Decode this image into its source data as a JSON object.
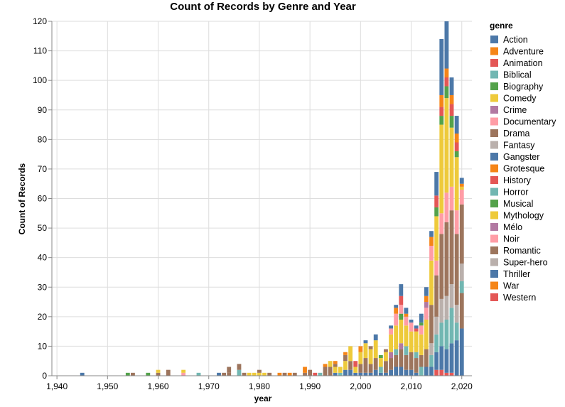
{
  "chart_data": {
    "type": "bar",
    "stacked": true,
    "title": "Count of Records by Genre and Year",
    "xlabel": "year",
    "ylabel": "Count of Records",
    "xlim": [
      1939,
      2022
    ],
    "ylim": [
      0,
      120
    ],
    "x_ticks": [
      "1,940",
      "1,950",
      "1,960",
      "1,970",
      "1,980",
      "1,990",
      "2,000",
      "2,010",
      "2,020"
    ],
    "x_tick_values": [
      1940,
      1950,
      1960,
      1970,
      1980,
      1990,
      2000,
      2010,
      2020
    ],
    "y_ticks": [
      0,
      10,
      20,
      30,
      40,
      50,
      60,
      70,
      80,
      90,
      100,
      110,
      120
    ],
    "grid": true,
    "legend": {
      "title": "genre",
      "position": "right"
    },
    "series": [
      {
        "name": "Action",
        "color": "#4c78a8"
      },
      {
        "name": "Adventure",
        "color": "#f58518"
      },
      {
        "name": "Animation",
        "color": "#e45756"
      },
      {
        "name": "Biblical",
        "color": "#72b7b2"
      },
      {
        "name": "Biography",
        "color": "#54a24b"
      },
      {
        "name": "Comedy",
        "color": "#eeca3b"
      },
      {
        "name": "Crime",
        "color": "#b279a2"
      },
      {
        "name": "Documentary",
        "color": "#ff9da6"
      },
      {
        "name": "Drama",
        "color": "#9d755d"
      },
      {
        "name": "Fantasy",
        "color": "#bab0ac"
      },
      {
        "name": "Gangster",
        "color": "#4c78a8"
      },
      {
        "name": "Grotesque",
        "color": "#f58518"
      },
      {
        "name": "History",
        "color": "#e45756"
      },
      {
        "name": "Horror",
        "color": "#72b7b2"
      },
      {
        "name": "Musical",
        "color": "#54a24b"
      },
      {
        "name": "Mythology",
        "color": "#eeca3b"
      },
      {
        "name": "Mélo",
        "color": "#b279a2"
      },
      {
        "name": "Noir",
        "color": "#ff9da6"
      },
      {
        "name": "Romantic",
        "color": "#9d755d"
      },
      {
        "name": "Super-hero",
        "color": "#bab0ac"
      },
      {
        "name": "Thriller",
        "color": "#4c78a8"
      },
      {
        "name": "War",
        "color": "#f58518"
      },
      {
        "name": "Western",
        "color": "#e45756"
      }
    ],
    "bars": [
      {
        "year": 1945,
        "stack": [
          [
            "Action",
            1
          ]
        ]
      },
      {
        "year": 1954,
        "stack": [
          [
            "Biography",
            1
          ]
        ]
      },
      {
        "year": 1955,
        "stack": [
          [
            "Drama",
            1
          ]
        ]
      },
      {
        "year": 1958,
        "stack": [
          [
            "Biography",
            1
          ]
        ]
      },
      {
        "year": 1960,
        "stack": [
          [
            "Drama",
            1
          ],
          [
            "Comedy",
            1
          ]
        ]
      },
      {
        "year": 1962,
        "stack": [
          [
            "Drama",
            2
          ]
        ]
      },
      {
        "year": 1965,
        "stack": [
          [
            "Documentary",
            1
          ],
          [
            "Comedy",
            1
          ]
        ]
      },
      {
        "year": 1968,
        "stack": [
          [
            "Biblical",
            1
          ]
        ]
      },
      {
        "year": 1972,
        "stack": [
          [
            "Action",
            1
          ]
        ]
      },
      {
        "year": 1973,
        "stack": [
          [
            "Drama",
            1
          ]
        ]
      },
      {
        "year": 1974,
        "stack": [
          [
            "Drama",
            1
          ],
          [
            "Romantic",
            2
          ]
        ]
      },
      {
        "year": 1976,
        "stack": [
          [
            "Horror",
            2
          ],
          [
            "Drama",
            2
          ]
        ]
      },
      {
        "year": 1977,
        "stack": [
          [
            "Drama",
            1
          ]
        ]
      },
      {
        "year": 1978,
        "stack": [
          [
            "Comedy",
            1
          ]
        ]
      },
      {
        "year": 1979,
        "stack": [
          [
            "Comedy",
            1
          ]
        ]
      },
      {
        "year": 1980,
        "stack": [
          [
            "Comedy",
            1
          ],
          [
            "Drama",
            1
          ]
        ]
      },
      {
        "year": 1981,
        "stack": [
          [
            "Comedy",
            1
          ]
        ]
      },
      {
        "year": 1982,
        "stack": [
          [
            "Drama",
            1
          ]
        ]
      },
      {
        "year": 1984,
        "stack": [
          [
            "Adventure",
            1
          ]
        ]
      },
      {
        "year": 1985,
        "stack": [
          [
            "Drama",
            1
          ]
        ]
      },
      {
        "year": 1986,
        "stack": [
          [
            "Adventure",
            1
          ]
        ]
      },
      {
        "year": 1987,
        "stack": [
          [
            "Drama",
            1
          ]
        ]
      },
      {
        "year": 1989,
        "stack": [
          [
            "Drama",
            1
          ],
          [
            "Adventure",
            2
          ]
        ]
      },
      {
        "year": 1990,
        "stack": [
          [
            "Drama",
            2
          ]
        ]
      },
      {
        "year": 1991,
        "stack": [
          [
            "Animation",
            1
          ]
        ]
      },
      {
        "year": 1992,
        "stack": [
          [
            "Biblical",
            1
          ]
        ]
      },
      {
        "year": 1993,
        "stack": [
          [
            "Drama",
            3
          ],
          [
            "Adventure",
            1
          ]
        ]
      },
      {
        "year": 1994,
        "stack": [
          [
            "Drama",
            3
          ],
          [
            "Comedy",
            2
          ]
        ]
      },
      {
        "year": 1995,
        "stack": [
          [
            "Action",
            1
          ],
          [
            "Comedy",
            2
          ],
          [
            "Drama",
            1
          ],
          [
            "Adventure",
            1
          ]
        ]
      },
      {
        "year": 1996,
        "stack": [
          [
            "Horror",
            1
          ],
          [
            "Comedy",
            2
          ]
        ]
      },
      {
        "year": 1997,
        "stack": [
          [
            "Action",
            2
          ],
          [
            "Comedy",
            3
          ],
          [
            "Drama",
            2
          ],
          [
            "Adventure",
            1
          ]
        ]
      },
      {
        "year": 1998,
        "stack": [
          [
            "Action",
            2
          ],
          [
            "Drama",
            3
          ],
          [
            "Comedy",
            5
          ]
        ]
      },
      {
        "year": 1999,
        "stack": [
          [
            "Action",
            1
          ],
          [
            "Comedy",
            2
          ],
          [
            "Animation",
            2
          ]
        ]
      },
      {
        "year": 2000,
        "stack": [
          [
            "Action",
            1
          ],
          [
            "Drama",
            3
          ],
          [
            "Comedy",
            4
          ],
          [
            "Adventure",
            2
          ]
        ]
      },
      {
        "year": 2001,
        "stack": [
          [
            "Action",
            1
          ],
          [
            "Drama",
            5
          ],
          [
            "Comedy",
            5
          ],
          [
            "Action",
            1
          ]
        ]
      },
      {
        "year": 2002,
        "stack": [
          [
            "Action",
            1
          ],
          [
            "Drama",
            3
          ],
          [
            "Comedy",
            5
          ],
          [
            "Drama",
            1
          ]
        ]
      },
      {
        "year": 2003,
        "stack": [
          [
            "Action",
            2
          ],
          [
            "Drama",
            4
          ],
          [
            "Comedy",
            6
          ],
          [
            "Action",
            2
          ]
        ]
      },
      {
        "year": 2004,
        "stack": [
          [
            "Action",
            1
          ],
          [
            "Horror",
            2
          ],
          [
            "Comedy",
            3
          ],
          [
            "Biography",
            1
          ]
        ]
      },
      {
        "year": 2005,
        "stack": [
          [
            "Action",
            1
          ],
          [
            "Drama",
            4
          ],
          [
            "Comedy",
            3
          ],
          [
            "Drama",
            1
          ]
        ]
      },
      {
        "year": 2006,
        "stack": [
          [
            "Action",
            2
          ],
          [
            "Drama",
            4
          ],
          [
            "Crime",
            2
          ],
          [
            "Comedy",
            6
          ],
          [
            "Documentary",
            2
          ],
          [
            "Action",
            1
          ]
        ]
      },
      {
        "year": 2007,
        "stack": [
          [
            "Action",
            3
          ],
          [
            "Drama",
            4
          ],
          [
            "Biblical",
            2
          ],
          [
            "Comedy",
            8
          ],
          [
            "Documentary",
            4
          ],
          [
            "Adventure",
            2
          ],
          [
            "Action",
            1
          ]
        ]
      },
      {
        "year": 2008,
        "stack": [
          [
            "Action",
            3
          ],
          [
            "Drama",
            6
          ],
          [
            "Crime",
            2
          ],
          [
            "Comedy",
            8
          ],
          [
            "Biography",
            2
          ],
          [
            "Documentary",
            3
          ],
          [
            "Animation",
            3
          ],
          [
            "Action",
            4
          ]
        ]
      },
      {
        "year": 2009,
        "stack": [
          [
            "Action",
            2
          ],
          [
            "Drama",
            5
          ],
          [
            "Biblical",
            3
          ],
          [
            "Comedy",
            7
          ],
          [
            "Documentary",
            3
          ],
          [
            "Adventure",
            1
          ],
          [
            "Action",
            2
          ]
        ]
      },
      {
        "year": 2010,
        "stack": [
          [
            "Action",
            2
          ],
          [
            "Drama",
            6
          ],
          [
            "Comedy",
            7
          ],
          [
            "Documentary",
            3
          ],
          [
            "Action",
            1
          ]
        ]
      },
      {
        "year": 2011,
        "stack": [
          [
            "Action",
            1
          ],
          [
            "Drama",
            5
          ],
          [
            "Biblical",
            2
          ],
          [
            "Comedy",
            7
          ],
          [
            "Animation",
            1
          ],
          [
            "Action",
            1
          ]
        ]
      },
      {
        "year": 2012,
        "stack": [
          [
            "Biblical",
            3
          ],
          [
            "Drama",
            4
          ],
          [
            "Comedy",
            7
          ],
          [
            "Documentary",
            3
          ],
          [
            "Biography",
            1
          ],
          [
            "Action",
            3
          ]
        ]
      },
      {
        "year": 2013,
        "stack": [
          [
            "Action",
            3
          ],
          [
            "Drama",
            6
          ],
          [
            "Comedy",
            10
          ],
          [
            "Documentary",
            4
          ],
          [
            "Crime",
            2
          ],
          [
            "Adventure",
            2
          ],
          [
            "Action",
            3
          ]
        ]
      },
      {
        "year": 2014,
        "stack": [
          [
            "Action",
            3
          ],
          [
            "Biblical",
            4
          ],
          [
            "Fantasy",
            4
          ],
          [
            "Drama",
            13
          ],
          [
            "Comedy",
            15
          ],
          [
            "Documentary",
            5
          ],
          [
            "Adventure",
            3
          ],
          [
            "Action",
            2
          ]
        ]
      },
      {
        "year": 2015,
        "stack": [
          [
            "Animation",
            2
          ],
          [
            "Action",
            6
          ],
          [
            "Biblical",
            6
          ],
          [
            "Fantasy",
            6
          ],
          [
            "Drama",
            14
          ],
          [
            "Documentary",
            5
          ],
          [
            "Comedy",
            15
          ],
          [
            "Biography",
            3
          ],
          [
            "Animation",
            4
          ],
          [
            "Action",
            8
          ]
        ]
      },
      {
        "year": 2016,
        "stack": [
          [
            "Animation",
            2
          ],
          [
            "Action",
            8
          ],
          [
            "Biblical",
            8
          ],
          [
            "Fantasy",
            8
          ],
          [
            "Drama",
            22
          ],
          [
            "Documentary",
            7
          ],
          [
            "Comedy",
            30
          ],
          [
            "Biography",
            3
          ],
          [
            "Animation",
            3
          ],
          [
            "Adventure",
            4
          ],
          [
            "Action",
            19
          ]
        ]
      },
      {
        "year": 2017,
        "stack": [
          [
            "Animation",
            1
          ],
          [
            "Action",
            8
          ],
          [
            "Biblical",
            10
          ],
          [
            "Fantasy",
            8
          ],
          [
            "Drama",
            25
          ],
          [
            "Documentary",
            10
          ],
          [
            "Comedy",
            32
          ],
          [
            "Biography",
            4
          ],
          [
            "Animation",
            3
          ],
          [
            "Adventure",
            3
          ],
          [
            "Action",
            16
          ]
        ]
      },
      {
        "year": 2018,
        "stack": [
          [
            "Animation",
            1
          ],
          [
            "Action",
            10
          ],
          [
            "Biblical",
            12
          ],
          [
            "Fantasy",
            8
          ],
          [
            "Drama",
            25
          ],
          [
            "Documentary",
            8
          ],
          [
            "Comedy",
            20
          ],
          [
            "Biography",
            4
          ],
          [
            "Animation",
            4
          ],
          [
            "Adventure",
            3
          ],
          [
            "Action",
            6
          ]
        ]
      },
      {
        "year": 2019,
        "stack": [
          [
            "Action",
            12
          ],
          [
            "Biblical",
            6
          ],
          [
            "Fantasy",
            6
          ],
          [
            "Drama",
            24
          ],
          [
            "Documentary",
            8
          ],
          [
            "Comedy",
            18
          ],
          [
            "Biography",
            2
          ],
          [
            "Animation",
            3
          ],
          [
            "Adventure",
            3
          ],
          [
            "Action",
            6
          ]
        ]
      },
      {
        "year": 2020,
        "stack": [
          [
            "Action",
            16
          ],
          [
            "Drama",
            12
          ],
          [
            "Biblical",
            4
          ],
          [
            "Fantasy",
            6
          ],
          [
            "Drama",
            20
          ],
          [
            "Documentary",
            5
          ],
          [
            "Comedy",
            1
          ],
          [
            "Adventure",
            1
          ],
          [
            "Action",
            2
          ]
        ]
      }
    ]
  }
}
